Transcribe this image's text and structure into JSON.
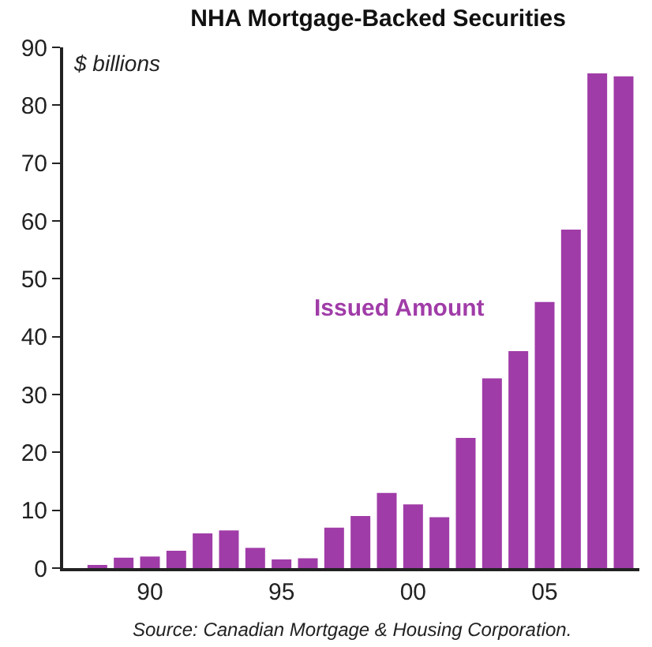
{
  "chart_data": {
    "type": "bar",
    "title": "NHA Mortgage-Backed Securities",
    "ylabel": "$ billions",
    "x": [
      1988,
      1989,
      1990,
      1991,
      1992,
      1993,
      1994,
      1995,
      1996,
      1997,
      1998,
      1999,
      2000,
      2001,
      2002,
      2003,
      2004,
      2005,
      2006,
      2007,
      2008
    ],
    "series": [
      {
        "name": "Issued Amount",
        "color": "#a03ca8",
        "values": [
          0.5,
          1.8,
          2,
          3,
          6,
          6.5,
          3.5,
          1.5,
          1.7,
          7,
          9,
          13,
          11,
          8.8,
          22.5,
          32.8,
          37.5,
          46,
          58.5,
          85.5,
          85
        ]
      }
    ],
    "xlim": [
      1986.7,
      2008.6
    ],
    "xticks": [
      {
        "value": 1990,
        "label": "90"
      },
      {
        "value": 1995,
        "label": "95"
      },
      {
        "value": 2000,
        "label": "00"
      },
      {
        "value": 2005,
        "label": "05"
      }
    ],
    "ylim": [
      0,
      90
    ],
    "yticks": [
      0,
      10,
      20,
      30,
      40,
      50,
      60,
      70,
      80,
      90
    ],
    "annotations": [
      "Source: Canadian Mortgage & Housing Corporation."
    ],
    "legend": false
  }
}
